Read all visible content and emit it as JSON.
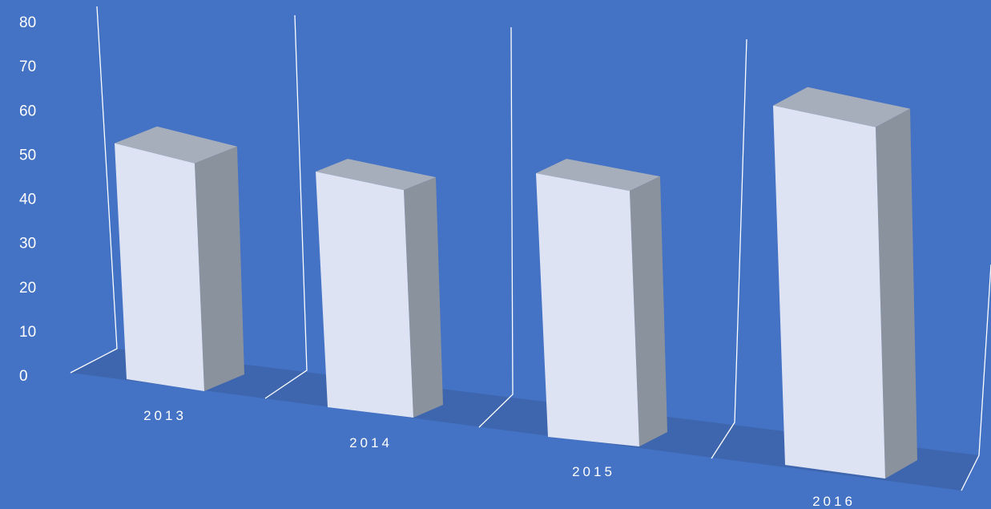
{
  "chart_data": {
    "type": "bar",
    "title": "",
    "xlabel": "",
    "ylabel": "",
    "categories": [
      "2013",
      "2014",
      "2015",
      "2016"
    ],
    "values": [
      55,
      45,
      46,
      61
    ],
    "ylim": [
      0,
      80
    ],
    "yticks": [
      "0",
      "10",
      "20",
      "30",
      "40",
      "50",
      "60",
      "70",
      "80"
    ],
    "style": "3d-column",
    "grid": false,
    "legend": "none"
  },
  "colors": {
    "background": "#4472c4",
    "floor": "#3e66ae",
    "bar_front": "#dde3f3",
    "bar_side": "#8a929d",
    "bar_top": "#a6aebb",
    "axis_lines": "#ffffff",
    "text": "#ffffff"
  }
}
